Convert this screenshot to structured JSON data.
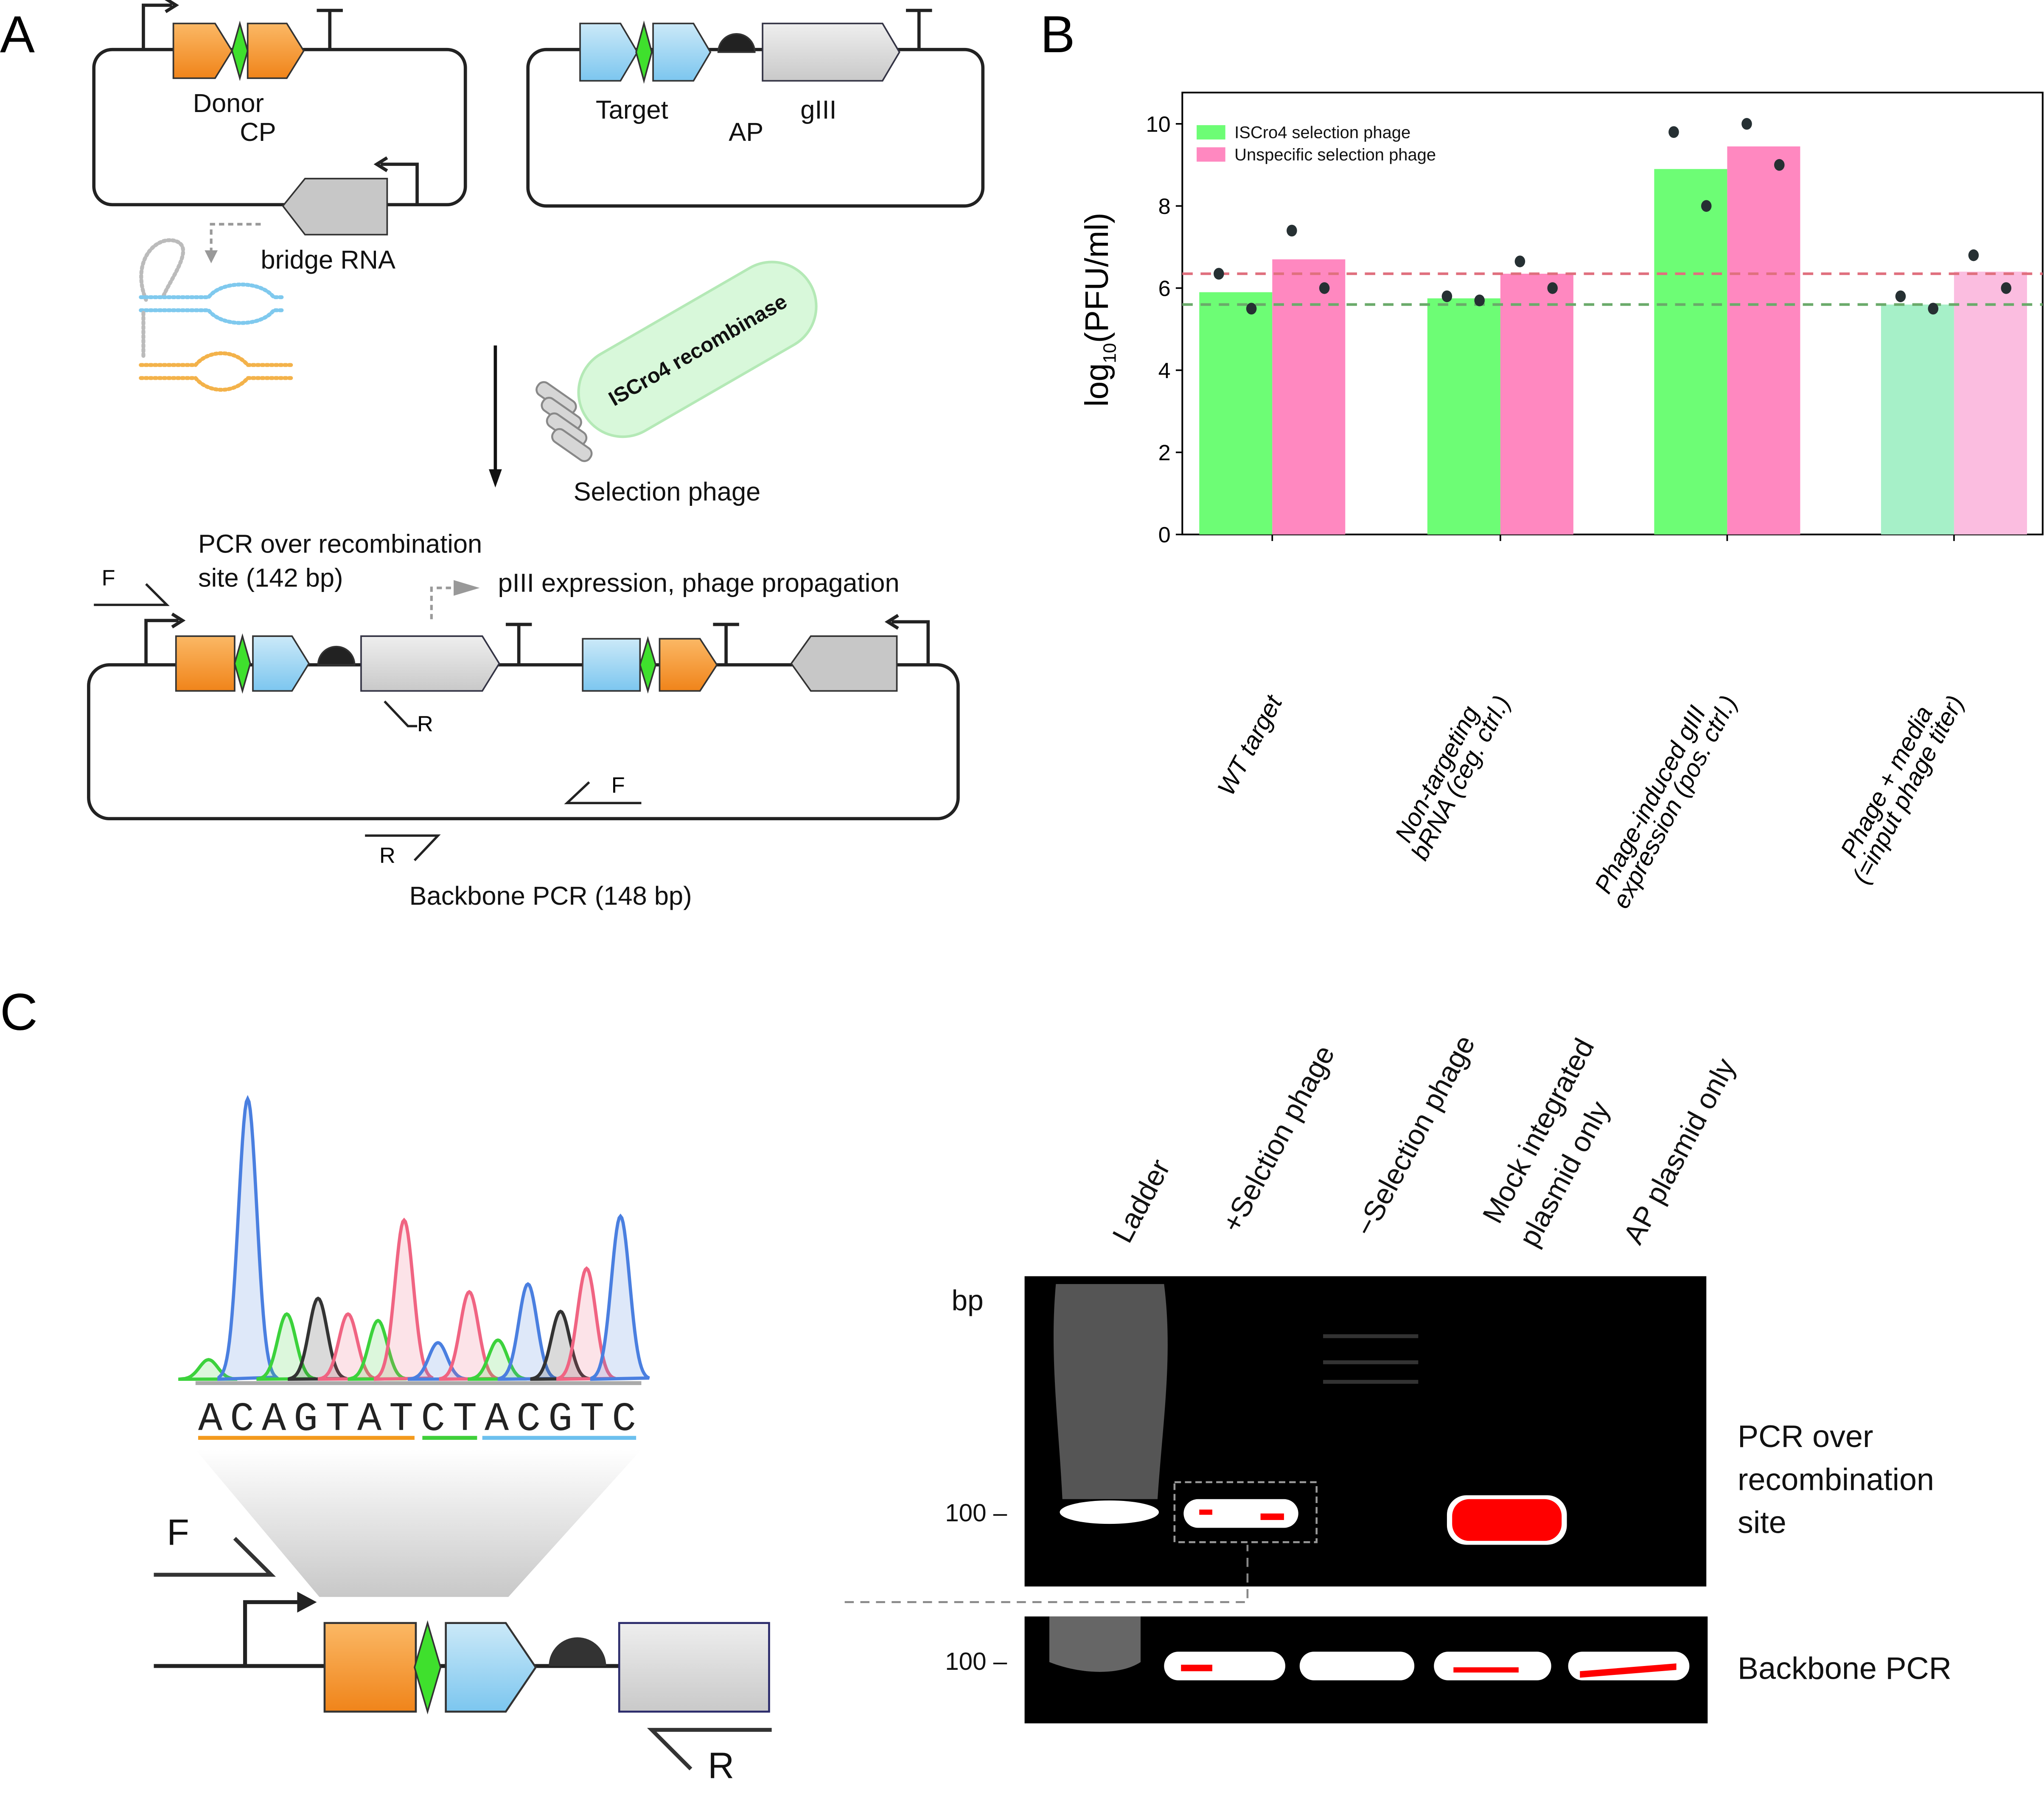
{
  "panels": {
    "a": "A",
    "b": "B",
    "c": "C"
  },
  "panel_a": {
    "donor_label_1": "Donor",
    "donor_label_2": "CP",
    "bridge_rna": "bridge RNA",
    "target": "Target",
    "ap": "AP",
    "giii": "gIII",
    "recombinase": "ISCro4 recombinase",
    "selection_phage": "Selection phage",
    "pcr_over_1": "PCR over recombination",
    "pcr_over_2": "site (142 bp)",
    "piii": "pIII expression, phage propagation",
    "primer_f": "F",
    "primer_r": "R",
    "backbone_pcr": "Backbone PCR (148 bp)"
  },
  "chart_data": {
    "type": "bar",
    "ylabel": "log10(PFU/ml)",
    "ylabel_main": "log",
    "ylabel_sub": "10",
    "ylabel_rest": "(PFU/ml)",
    "ylim": [
      0,
      10.8
    ],
    "yticks": [
      "0",
      "2",
      "4",
      "6",
      "8",
      "10"
    ],
    "categories": [
      [
        "WT target"
      ],
      [
        "Non-targeting",
        "bRNA (ceg. ctrl.)"
      ],
      [
        "Phage-induced gIII",
        "expression (pos. ctrl.)"
      ],
      [
        "Phage + media",
        "(=input phage titer)"
      ]
    ],
    "series": [
      {
        "name": "ISCro4 selection phage",
        "color": "#6dfd75",
        "values": [
          5.9,
          5.75,
          8.9,
          5.6
        ],
        "points": [
          [
            6.35,
            5.5
          ],
          [
            5.8,
            5.7
          ],
          [
            9.8,
            8.0
          ],
          [
            5.8,
            5.5
          ]
        ]
      },
      {
        "name": "Unspecific selection phage",
        "color": "#ff88c0",
        "values": [
          6.7,
          6.35,
          9.45,
          6.4
        ],
        "points": [
          [
            7.4,
            6.0
          ],
          [
            6.65,
            6.0
          ],
          [
            10.0,
            9.0
          ],
          [
            6.8,
            6.0
          ]
        ]
      }
    ],
    "last_category_colors": [
      "#a6f0c8",
      "#fbbde0"
    ],
    "reference_lines": [
      {
        "value": 6.35,
        "color": "#e0707e"
      },
      {
        "value": 5.6,
        "color": "#6aaa6a"
      }
    ],
    "legend": "top-left"
  },
  "panel_c": {
    "sequence": "ACAGTATCTACGTC",
    "primer_f": "F",
    "primer_r": "R",
    "lanes": [
      {
        "label": "Ladder"
      },
      {
        "label": "+Selction phage"
      },
      {
        "label": "−Selection phage"
      },
      {
        "label_1": "Mock integrated",
        "label_2": "plasmid only"
      },
      {
        "label": "AP plasmid only"
      }
    ],
    "bp": "bp",
    "marker_top": "100 –",
    "marker_bottom": "100 –",
    "gel_top_label_1": "PCR over",
    "gel_top_label_2": "recombination",
    "gel_top_label_3": "site",
    "gel_bottom_label": "Backbone PCR"
  }
}
